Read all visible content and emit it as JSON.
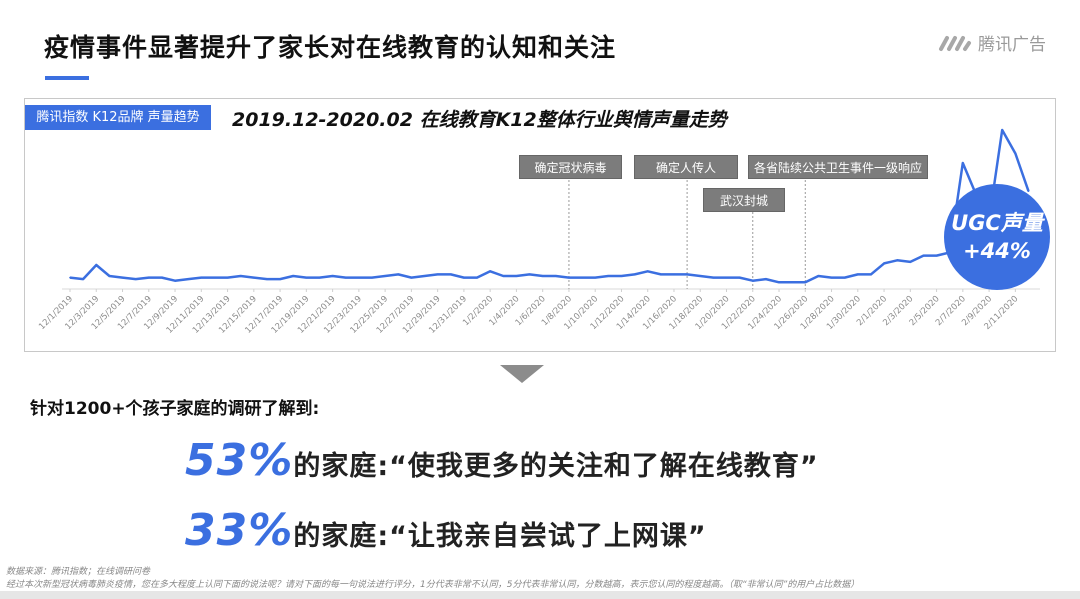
{
  "header": {
    "title": "疫情事件显著提升了家长对在线教育的认知和关注",
    "logo_text": "腾讯广告",
    "accent_color": "#3b6fe0"
  },
  "chart_panel": {
    "tag": "腾讯指数 K12品牌 声量趋势",
    "annotations": [
      {
        "label": "确定冠状病毒",
        "date": "1/8/2020"
      },
      {
        "label": "确定人传人",
        "date": "1/17/2020"
      },
      {
        "label": "武汉封城",
        "date": "1/22/2020"
      },
      {
        "label": "各省陆续公共卫生事件一级响应",
        "date": "1/26/2020"
      }
    ],
    "bubble": {
      "line1": "UGC声量",
      "line2": "+44%"
    }
  },
  "chart_data": {
    "type": "line",
    "title": "2019.12-2020.02 在线教育K12整体行业舆情声量走势",
    "xlabel": "",
    "ylabel": "",
    "start_date": "12/1/2019",
    "x_tick_labels": [
      "12/1/2019",
      "12/3/2019",
      "12/5/2019",
      "12/7/2019",
      "12/9/2019",
      "12/11/2019",
      "12/13/2019",
      "12/15/2019",
      "12/17/2019",
      "12/19/2019",
      "12/21/2019",
      "12/23/2019",
      "12/25/2019",
      "12/27/2019",
      "12/29/2019",
      "12/31/2019",
      "1/2/2020",
      "1/4/2020",
      "1/6/2020",
      "1/8/2020",
      "1/10/2020",
      "1/12/2020",
      "1/14/2020",
      "1/16/2020",
      "1/18/2020",
      "1/20/2020",
      "1/22/2020",
      "1/24/2020",
      "1/26/2020",
      "1/28/2020",
      "1/30/2020",
      "2/1/2020",
      "2/3/2020",
      "2/5/2020",
      "2/7/2020",
      "2/9/2020",
      "2/11/2020"
    ],
    "values": [
      6,
      5,
      14,
      7,
      6,
      5,
      6,
      6,
      4,
      5,
      6,
      6,
      6,
      7,
      6,
      5,
      5,
      7,
      6,
      6,
      7,
      6,
      6,
      6,
      7,
      8,
      6,
      7,
      8,
      8,
      6,
      6,
      10,
      7,
      7,
      8,
      7,
      7,
      6,
      6,
      6,
      7,
      7,
      8,
      10,
      8,
      8,
      8,
      7,
      6,
      6,
      6,
      4,
      5,
      3,
      3,
      3,
      7,
      6,
      6,
      8,
      8,
      15,
      17,
      16,
      20,
      20,
      22,
      79,
      59,
      43,
      100,
      85,
      61
    ],
    "ylim": [
      0,
      100
    ],
    "y_axis_shown": false,
    "grid": false,
    "line_color": "#3b6fe0"
  },
  "survey": {
    "intro": "针对1200+个孩子家庭的调研了解到:",
    "stats": [
      {
        "pct": "53%",
        "text": "的家庭:“使我更多的关注和了解在线教育”"
      },
      {
        "pct": "33%",
        "text": "的家庭:“让我亲自尝试了上网课”"
      }
    ]
  },
  "footnotes": {
    "source": "数据来源：腾讯指数；在线调研问卷",
    "question": "经过本次新型冠状病毒肺炎疫情，您在多大程度上认同下面的说法呢？请对下面的每一句说法进行评分，1分代表非常不认同，5分代表非常认同，分数越高，表示您认同的程度越高。（取“非常认同”的用户占比数据）"
  }
}
